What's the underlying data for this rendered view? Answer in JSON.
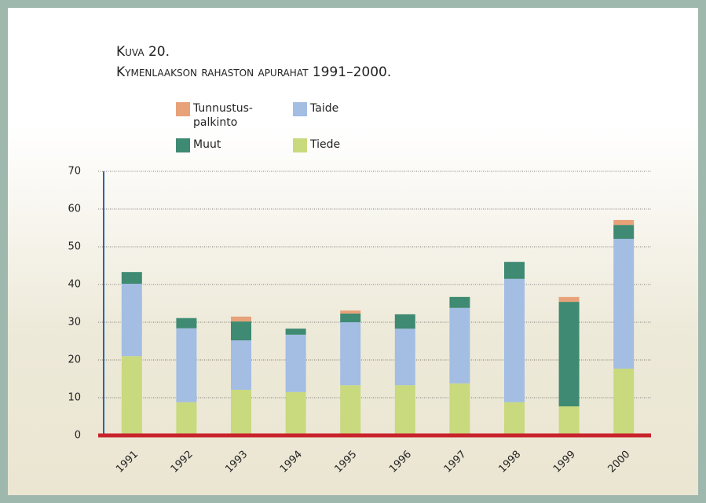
{
  "chart_data": {
    "type": "stacked_bar",
    "title": "Kuva 20.",
    "subtitle": "Kymenlaakson rahaston apurahat 1991–2000.",
    "categories": [
      "1991",
      "1992",
      "1993",
      "1994",
      "1995",
      "1996",
      "1997",
      "1998",
      "1999",
      "2000"
    ],
    "series": [
      {
        "name": "Tiede",
        "color": "#c9d97e",
        "values": [
          21.0,
          8.8,
          12.1,
          11.5,
          13.3,
          13.3,
          13.8,
          8.8,
          7.7,
          17.7
        ]
      },
      {
        "name": "Taide",
        "color": "#a3bde3",
        "values": [
          19.2,
          19.6,
          13.1,
          15.2,
          16.7,
          15.0,
          20.0,
          32.7,
          0,
          34.4
        ]
      },
      {
        "name": "Muut",
        "color": "#3e8a72",
        "values": [
          3.1,
          2.7,
          5.0,
          1.6,
          2.3,
          3.8,
          2.9,
          4.5,
          27.7,
          3.7
        ]
      },
      {
        "name": "Tunnustus-palkinto",
        "color": "#e8a27a",
        "values": [
          0,
          0,
          1.3,
          0,
          0.8,
          0,
          0,
          0,
          1.3,
          1.3
        ]
      }
    ],
    "ylim": [
      0,
      70
    ],
    "yticks": [
      0,
      10,
      20,
      30,
      40,
      50,
      60,
      70
    ],
    "grid": true
  }
}
